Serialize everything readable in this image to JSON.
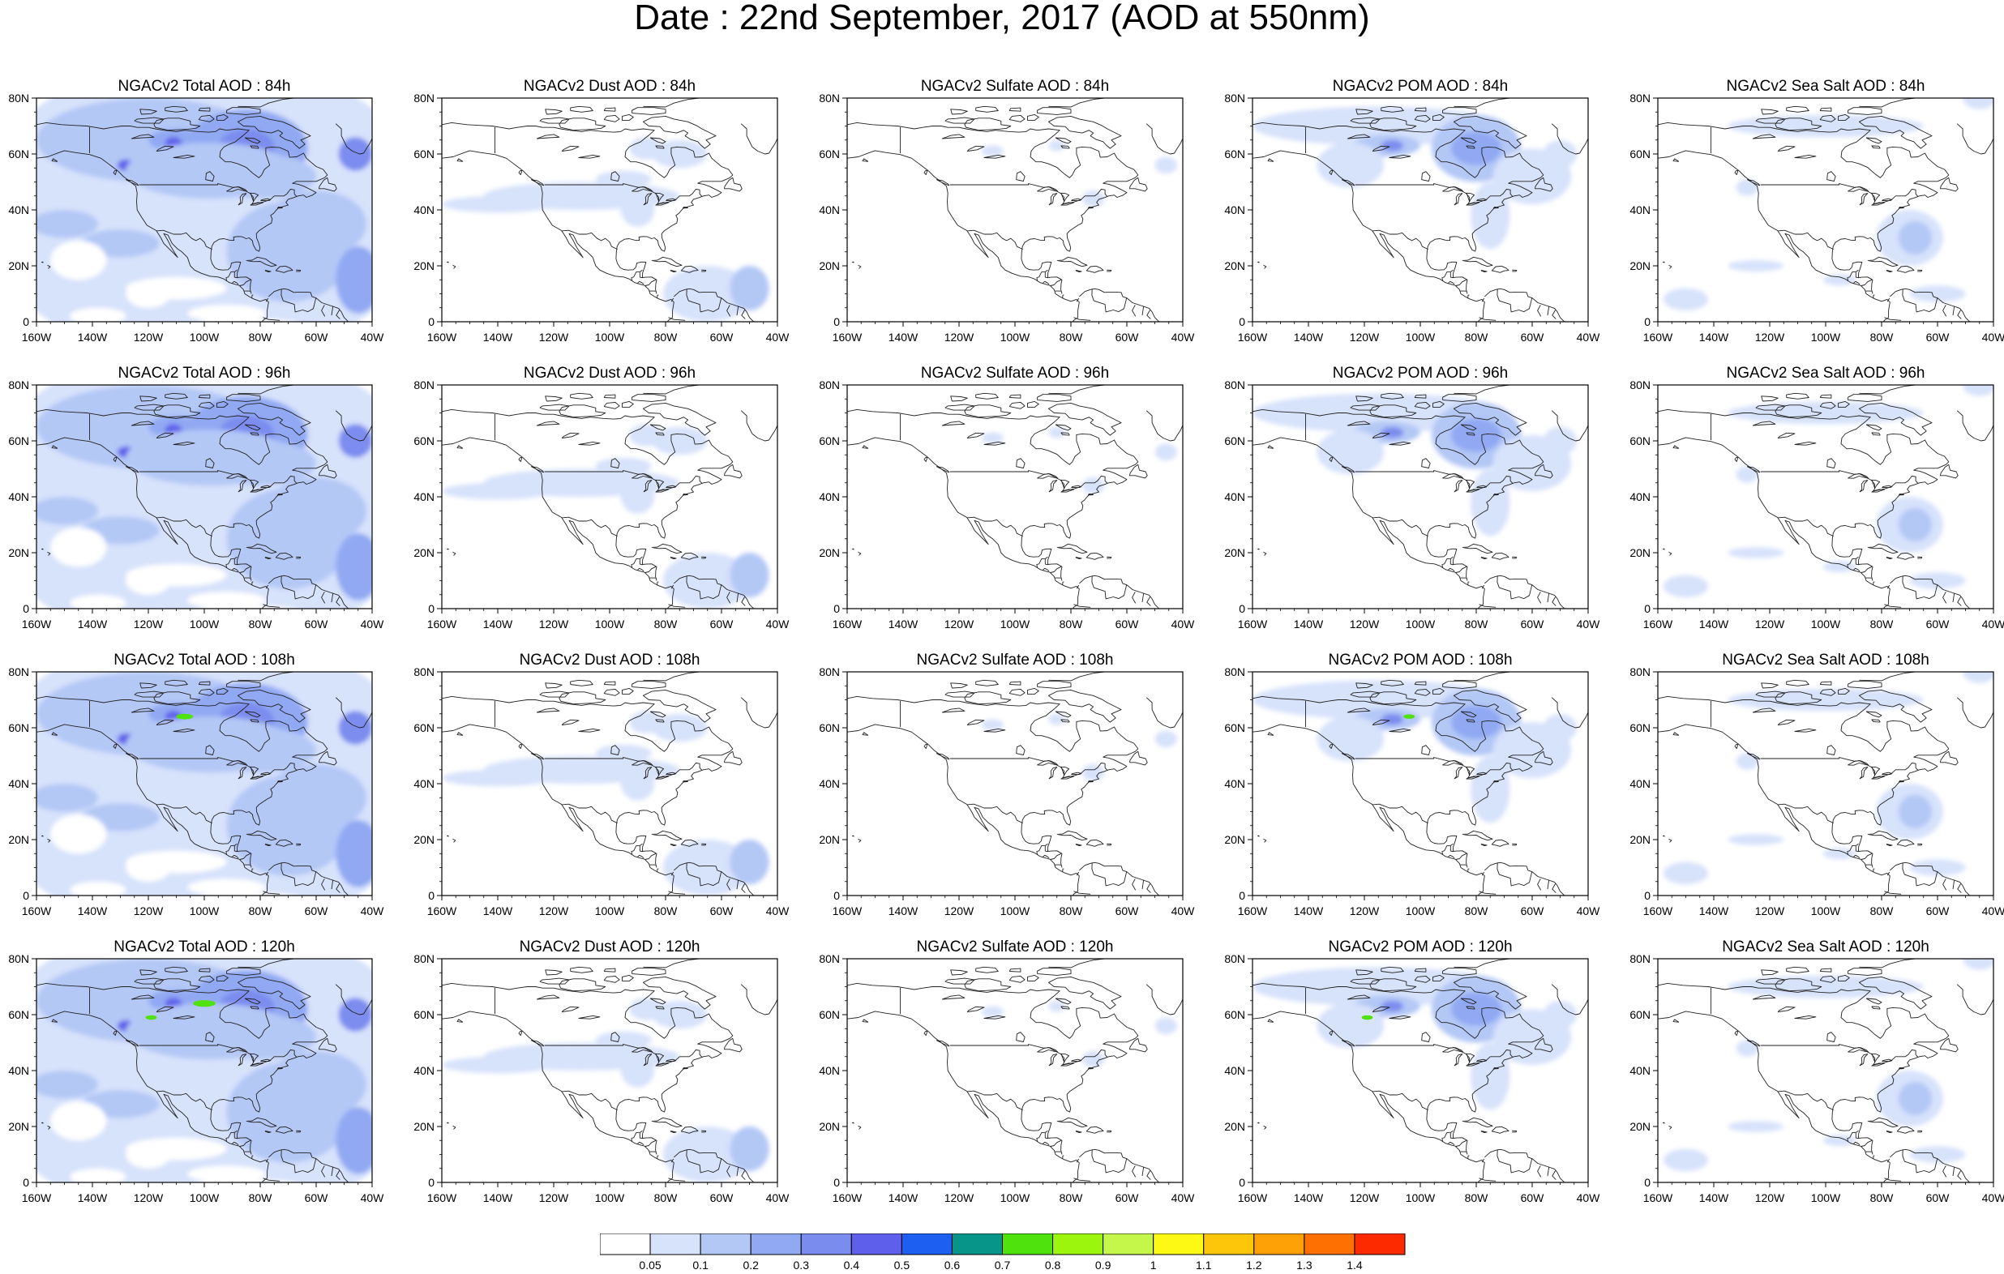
{
  "title": "Date : 22nd September, 2017 (AOD at 550nm)",
  "map": {
    "lon_labels": [
      "160W",
      "140W",
      "120W",
      "100W",
      "80W",
      "60W",
      "40W"
    ],
    "lat_labels": [
      "80N",
      "60N",
      "40N",
      "20N",
      "0"
    ]
  },
  "colorbar": {
    "colors": [
      "#ffffff",
      "#d7e2fb",
      "#b4c8f6",
      "#91a9f3",
      "#7b8cef",
      "#5e5fea",
      "#1d5ff0",
      "#07958a",
      "#4fe20c",
      "#9bf50c",
      "#c5f64a",
      "#fdf915",
      "#fec60b",
      "#fea106",
      "#fe7002",
      "#fd2a00"
    ],
    "labels": [
      "0.05",
      "0.1",
      "0.2",
      "0.3",
      "0.4",
      "0.5",
      "0.6",
      "0.7",
      "0.8",
      "0.9",
      "1",
      "1.1",
      "1.2",
      "1.3",
      "1.4"
    ]
  },
  "panels": [
    {
      "title": "NGACv2 Total AOD : 84h",
      "species": "total"
    },
    {
      "title": "NGACv2 Dust AOD : 84h",
      "species": "dust"
    },
    {
      "title": "NGACv2 Sulfate AOD : 84h",
      "species": "sulfate"
    },
    {
      "title": "NGACv2 POM AOD : 84h",
      "species": "pom"
    },
    {
      "title": "NGACv2 Sea Salt AOD : 84h",
      "species": "seasalt"
    },
    {
      "title": "NGACv2 Total AOD : 96h",
      "species": "total"
    },
    {
      "title": "NGACv2 Dust AOD : 96h",
      "species": "dust"
    },
    {
      "title": "NGACv2 Sulfate AOD : 96h",
      "species": "sulfate"
    },
    {
      "title": "NGACv2 POM AOD : 96h",
      "species": "pom"
    },
    {
      "title": "NGACv2 Sea Salt AOD : 96h",
      "species": "seasalt"
    },
    {
      "title": "NGACv2 Total AOD : 108h",
      "species": "total"
    },
    {
      "title": "NGACv2 Dust AOD : 108h",
      "species": "dust"
    },
    {
      "title": "NGACv2 Sulfate AOD : 108h",
      "species": "sulfate"
    },
    {
      "title": "NGACv2 POM AOD : 108h",
      "species": "pom"
    },
    {
      "title": "NGACv2 Sea Salt AOD : 108h",
      "species": "seasalt"
    },
    {
      "title": "NGACv2 Total AOD : 120h",
      "species": "total"
    },
    {
      "title": "NGACv2 Dust AOD : 120h",
      "species": "dust"
    },
    {
      "title": "NGACv2 Sulfate AOD : 120h",
      "species": "sulfate"
    },
    {
      "title": "NGACv2 POM AOD : 120h",
      "species": "pom"
    },
    {
      "title": "NGACv2 Sea Salt  AOD : 120h",
      "species": "seasalt"
    }
  ]
}
